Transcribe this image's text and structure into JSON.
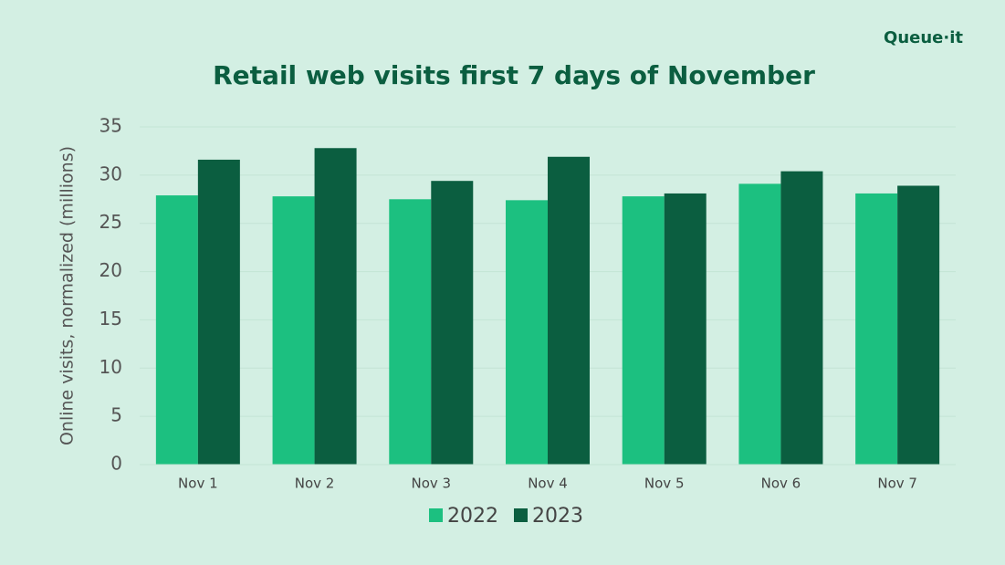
{
  "logo": "Queue·it",
  "chart_data": {
    "type": "bar",
    "title": "Retail web visits first 7 days of November",
    "y_label": "Online visits, normalized (millions)",
    "categories": [
      "Nov 1",
      "Nov 2",
      "Nov 3",
      "Nov 4",
      "Nov 5",
      "Nov 6",
      "Nov 7"
    ],
    "series": [
      {
        "name": "2022",
        "color": "#1cc080",
        "values": [
          27.9,
          27.8,
          27.5,
          27.4,
          27.8,
          29.1,
          28.1
        ]
      },
      {
        "name": "2023",
        "color": "#0b5e40",
        "values": [
          31.6,
          32.8,
          29.4,
          31.9,
          28.1,
          30.4,
          28.9
        ]
      }
    ],
    "ylim": [
      0,
      35
    ],
    "yticks": [
      0,
      5,
      10,
      15,
      20,
      25,
      30,
      35
    ],
    "grid": true,
    "legend": "bottom"
  }
}
